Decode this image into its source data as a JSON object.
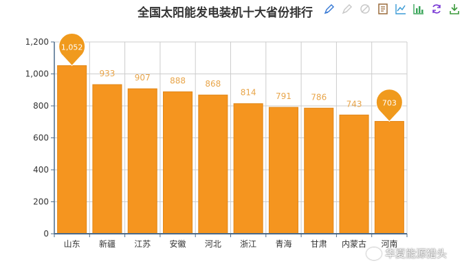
{
  "title": "全国太阳能发电装机十大省份排行",
  "colors": {
    "bar": "#f5951f",
    "bar_edge": "#e08718",
    "pin": "#f09a1d",
    "data_label": "#e8a54a",
    "axis": "#4a6a8a",
    "grid": "#cccccc",
    "tool_active": "#3a7bd5"
  },
  "toolbox": [
    {
      "name": "mark-tool-icon"
    },
    {
      "name": "mark-undo-icon"
    },
    {
      "name": "mark-clear-icon"
    },
    {
      "name": "data-view-icon"
    },
    {
      "name": "line-chart-icon"
    },
    {
      "name": "bar-chart-icon"
    },
    {
      "name": "restore-icon"
    },
    {
      "name": "save-image-icon"
    }
  ],
  "chart_data": {
    "type": "bar",
    "title": "全国太阳能发电装机十大省份排行",
    "xlabel": "",
    "ylabel": "",
    "categories": [
      "山东",
      "新疆",
      "江苏",
      "安徽",
      "河北",
      "浙江",
      "青海",
      "甘肃",
      "内蒙古",
      "河南"
    ],
    "values": [
      1052,
      933,
      907,
      888,
      868,
      814,
      791,
      786,
      743,
      703
    ],
    "value_labels": [
      "1,052",
      "933",
      "907",
      "888",
      "868",
      "814",
      "791",
      "786",
      "743",
      "703"
    ],
    "ylim": [
      0,
      1200
    ],
    "yticks": [
      0,
      200,
      400,
      600,
      800,
      1000,
      1200
    ],
    "ytick_labels": [
      "0",
      "200",
      "400",
      "600",
      "800",
      "1,000",
      "1,200"
    ],
    "grid": true,
    "mark_points": [
      {
        "type": "max",
        "category": "山东",
        "value": 1052,
        "label": "1,052"
      },
      {
        "type": "min",
        "category": "河南",
        "value": 703,
        "label": "703"
      }
    ]
  },
  "watermark": "华夏能源猎头"
}
